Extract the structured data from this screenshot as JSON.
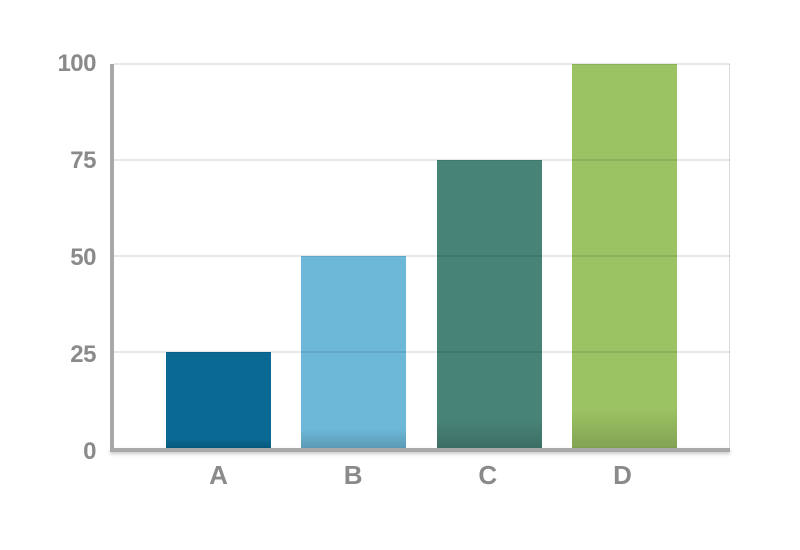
{
  "chart_data": {
    "type": "bar",
    "categories": [
      "A",
      "B",
      "C",
      "D"
    ],
    "values": [
      25,
      50,
      75,
      100
    ],
    "series_colors": [
      "#0a6a94",
      "#6db8d8",
      "#488378",
      "#9bc263"
    ],
    "title": "",
    "xlabel": "",
    "ylabel": "",
    "ylim": [
      0,
      100
    ],
    "yticks": [
      0,
      25,
      50,
      75,
      100
    ],
    "grid": true,
    "legend": false
  },
  "colors": {
    "background": "#ffffff",
    "axis": "#a8a8a8",
    "gridline": "#e0e0e0",
    "tick_label": "#8a8a8a"
  }
}
